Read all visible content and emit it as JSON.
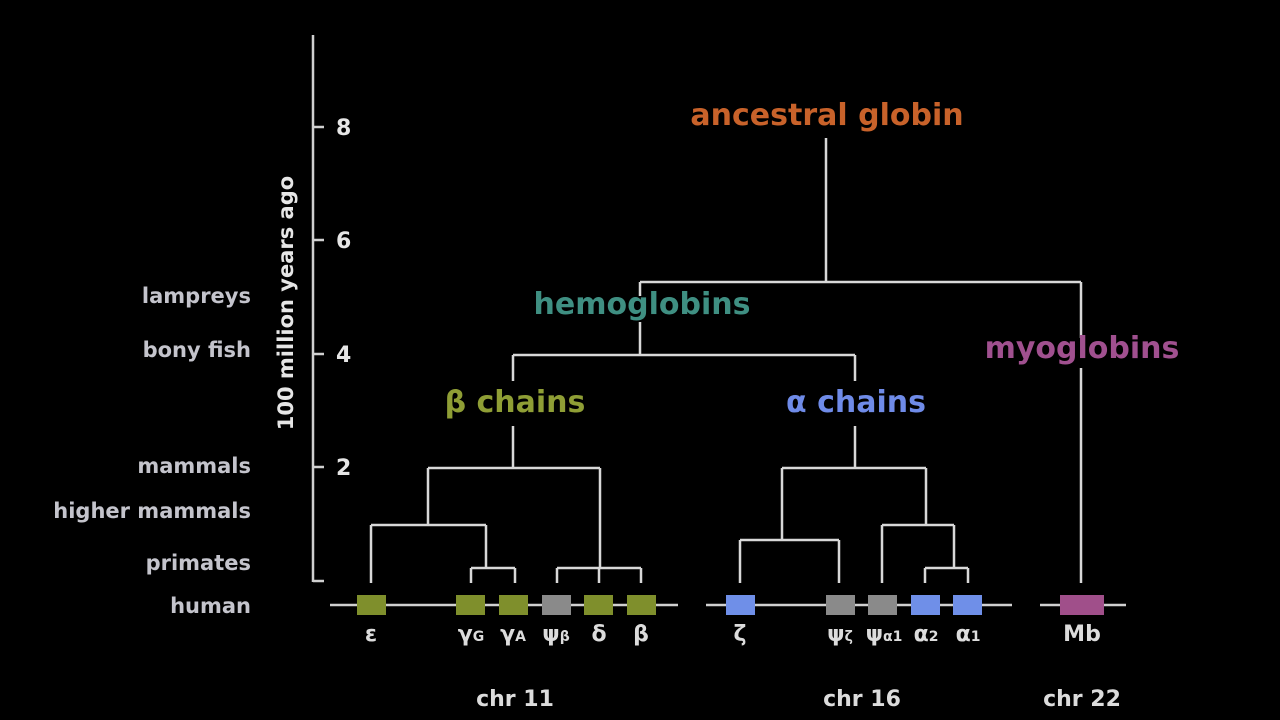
{
  "axis": {
    "label": "100 million years ago",
    "ticks": [
      "8",
      "6",
      "4",
      "2"
    ]
  },
  "eras": [
    "lampreys",
    "bony fish",
    "mammals",
    "higher mammals",
    "primates",
    "human"
  ],
  "groups": {
    "ancestral": "ancestral globin",
    "hemoglobins": "hemoglobins",
    "myoglobins": "myoglobins",
    "beta": "β chains",
    "alpha": "α chains"
  },
  "genes": {
    "epsilon": {
      "main": "ε",
      "sub": ""
    },
    "gamma_g": {
      "main": "γ",
      "sub": "G"
    },
    "gamma_a": {
      "main": "γ",
      "sub": "A"
    },
    "psi_beta": {
      "main": "ψ",
      "sub": "β"
    },
    "delta": {
      "main": "δ",
      "sub": ""
    },
    "beta": {
      "main": "β",
      "sub": ""
    },
    "zeta": {
      "main": "ζ",
      "sub": ""
    },
    "psi_zeta": {
      "main": "ψ",
      "sub": "ζ"
    },
    "psi_alpha1": {
      "main": "ψ",
      "sub": "α1"
    },
    "alpha2": {
      "main": "α",
      "sub": "2"
    },
    "alpha1": {
      "main": "α",
      "sub": "1"
    },
    "mb": {
      "main": "Mb",
      "sub": ""
    }
  },
  "chromosomes": {
    "chr11": "chr 11",
    "chr16": "chr 16",
    "chr22": "chr 22"
  },
  "colors": {
    "ancestral": "#c8622a",
    "hemoglobins": "#3f8f82",
    "myoglobins": "#a0508f",
    "beta_group": "#8f9e35",
    "alpha_group": "#6f8be8",
    "beta_box": "#7f8f2c",
    "alpha_box": "#6f8fe8",
    "pseudo_box": "#8a8a8a",
    "mb_box": "#a04f8a"
  }
}
